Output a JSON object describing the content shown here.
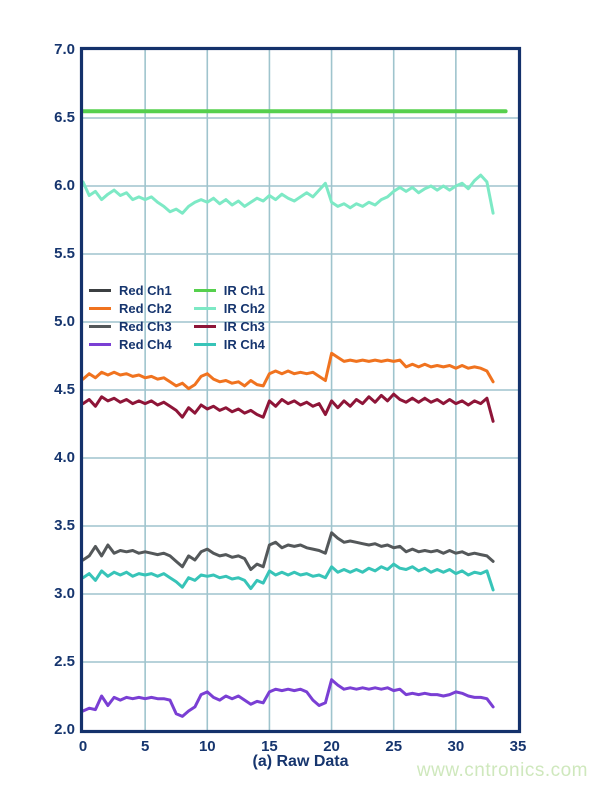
{
  "page": {
    "background": "#ffffff",
    "watermark": "www.cntronics.com",
    "watermark_color": "#cfe8bd"
  },
  "chart_data": {
    "type": "line",
    "title": "",
    "xlabel": "(a) Raw Data",
    "ylabel": "",
    "xlim": [
      0,
      35
    ],
    "ylim": [
      2.0,
      7.0
    ],
    "grid": true,
    "legend_position": "inside-left, two columns, near y=5.0-5.3",
    "axis_color": "#16356e",
    "frame_color": "#14316b",
    "grid_color": "#9fc4cd",
    "x_ticks": [
      {
        "value": 0,
        "label": "0"
      },
      {
        "value": 5,
        "label": "5"
      },
      {
        "value": 10,
        "label": "10"
      },
      {
        "value": 15,
        "label": "15"
      },
      {
        "value": 20,
        "label": "20"
      },
      {
        "value": 25,
        "label": "25"
      },
      {
        "value": 30,
        "label": "30"
      },
      {
        "value": 35,
        "label": "35"
      }
    ],
    "y_ticks": [
      {
        "value": 2.0,
        "label": "2.0"
      },
      {
        "value": 2.5,
        "label": "2.5"
      },
      {
        "value": 3.0,
        "label": "3.0"
      },
      {
        "value": 3.5,
        "label": "3.5"
      },
      {
        "value": 4.0,
        "label": "4.0"
      },
      {
        "value": 4.5,
        "label": "4.5"
      },
      {
        "value": 5.0,
        "label": "5.0"
      },
      {
        "value": 5.5,
        "label": "5.5"
      },
      {
        "value": 6.0,
        "label": "6.0"
      },
      {
        "value": 6.5,
        "label": "6.5"
      },
      {
        "value": 7.0,
        "label": "7.0"
      }
    ],
    "grid_x": [
      5,
      10,
      15,
      20,
      25,
      30
    ],
    "grid_y": [
      2.5,
      3.0,
      3.5,
      4.0,
      4.5,
      5.0,
      5.5,
      6.0,
      6.5
    ],
    "x_start": 0,
    "x_step": 0.5,
    "series": [
      {
        "name": "Red Ch1",
        "color": "#3b3f41",
        "width": 3,
        "values": []
      },
      {
        "name": "Red Ch2",
        "color": "#f0731f",
        "width": 3,
        "values": [
          4.58,
          4.62,
          4.59,
          4.63,
          4.61,
          4.63,
          4.61,
          4.62,
          4.6,
          4.61,
          4.59,
          4.6,
          4.58,
          4.59,
          4.56,
          4.53,
          4.55,
          4.51,
          4.54,
          4.6,
          4.62,
          4.58,
          4.56,
          4.57,
          4.55,
          4.56,
          4.53,
          4.57,
          4.54,
          4.53,
          4.62,
          4.64,
          4.62,
          4.64,
          4.62,
          4.63,
          4.62,
          4.63,
          4.6,
          4.57,
          4.77,
          4.74,
          4.71,
          4.72,
          4.71,
          4.72,
          4.71,
          4.72,
          4.71,
          4.72,
          4.71,
          4.72,
          4.67,
          4.69,
          4.67,
          4.69,
          4.67,
          4.68,
          4.67,
          4.68,
          4.66,
          4.68,
          4.66,
          4.67,
          4.66,
          4.64,
          4.56
        ]
      },
      {
        "name": "Red Ch3",
        "color": "#54585a",
        "width": 3,
        "values": [
          3.25,
          3.28,
          3.35,
          3.28,
          3.36,
          3.3,
          3.32,
          3.31,
          3.32,
          3.3,
          3.31,
          3.3,
          3.29,
          3.3,
          3.28,
          3.24,
          3.2,
          3.28,
          3.25,
          3.31,
          3.33,
          3.3,
          3.28,
          3.29,
          3.27,
          3.28,
          3.26,
          3.18,
          3.22,
          3.2,
          3.36,
          3.38,
          3.34,
          3.36,
          3.35,
          3.36,
          3.34,
          3.33,
          3.32,
          3.3,
          3.45,
          3.41,
          3.38,
          3.39,
          3.38,
          3.37,
          3.36,
          3.37,
          3.35,
          3.36,
          3.34,
          3.35,
          3.31,
          3.33,
          3.31,
          3.32,
          3.31,
          3.32,
          3.3,
          3.32,
          3.3,
          3.31,
          3.29,
          3.3,
          3.29,
          3.28,
          3.24
        ]
      },
      {
        "name": "Red Ch4",
        "color": "#7a3fd4",
        "width": 3,
        "values": [
          2.14,
          2.16,
          2.15,
          2.25,
          2.18,
          2.24,
          2.22,
          2.24,
          2.23,
          2.24,
          2.23,
          2.24,
          2.23,
          2.23,
          2.22,
          2.12,
          2.1,
          2.14,
          2.17,
          2.26,
          2.28,
          2.24,
          2.22,
          2.25,
          2.23,
          2.25,
          2.22,
          2.19,
          2.21,
          2.2,
          2.28,
          2.3,
          2.29,
          2.3,
          2.29,
          2.3,
          2.28,
          2.22,
          2.18,
          2.2,
          2.37,
          2.33,
          2.3,
          2.31,
          2.3,
          2.31,
          2.3,
          2.31,
          2.3,
          2.31,
          2.29,
          2.3,
          2.26,
          2.27,
          2.26,
          2.27,
          2.26,
          2.26,
          2.25,
          2.26,
          2.28,
          2.27,
          2.25,
          2.24,
          2.24,
          2.23,
          2.17
        ]
      },
      {
        "name": "IR Ch1",
        "color": "#56d04e",
        "width": 4,
        "x": [
          0,
          34
        ],
        "values": [
          6.55,
          6.55
        ]
      },
      {
        "name": "IR Ch2",
        "color": "#7de9c5",
        "width": 3,
        "values": [
          6.03,
          5.93,
          5.96,
          5.9,
          5.94,
          5.97,
          5.93,
          5.95,
          5.9,
          5.92,
          5.9,
          5.92,
          5.88,
          5.85,
          5.81,
          5.83,
          5.8,
          5.85,
          5.88,
          5.9,
          5.88,
          5.91,
          5.87,
          5.9,
          5.86,
          5.89,
          5.85,
          5.88,
          5.91,
          5.89,
          5.93,
          5.9,
          5.94,
          5.91,
          5.89,
          5.92,
          5.95,
          5.92,
          5.97,
          6.02,
          5.88,
          5.85,
          5.87,
          5.84,
          5.87,
          5.85,
          5.88,
          5.86,
          5.9,
          5.92,
          5.96,
          5.99,
          5.96,
          5.99,
          5.95,
          5.98,
          6.0,
          5.97,
          6.0,
          5.97,
          6.0,
          6.02,
          5.98,
          6.04,
          6.08,
          6.03,
          5.8
        ]
      },
      {
        "name": "IR Ch3",
        "color": "#8e1538",
        "width": 3,
        "values": [
          4.4,
          4.43,
          4.38,
          4.45,
          4.42,
          4.44,
          4.41,
          4.43,
          4.4,
          4.42,
          4.4,
          4.42,
          4.39,
          4.41,
          4.38,
          4.35,
          4.3,
          4.37,
          4.33,
          4.39,
          4.36,
          4.38,
          4.35,
          4.37,
          4.34,
          4.36,
          4.33,
          4.35,
          4.32,
          4.3,
          4.42,
          4.38,
          4.43,
          4.4,
          4.42,
          4.39,
          4.41,
          4.38,
          4.4,
          4.32,
          4.42,
          4.37,
          4.42,
          4.38,
          4.43,
          4.4,
          4.45,
          4.41,
          4.46,
          4.42,
          4.47,
          4.43,
          4.41,
          4.44,
          4.41,
          4.44,
          4.41,
          4.43,
          4.4,
          4.43,
          4.4,
          4.42,
          4.39,
          4.42,
          4.4,
          4.44,
          4.27
        ]
      },
      {
        "name": "IR Ch4",
        "color": "#37c4b8",
        "width": 3,
        "values": [
          3.12,
          3.15,
          3.1,
          3.17,
          3.13,
          3.16,
          3.14,
          3.16,
          3.13,
          3.15,
          3.14,
          3.15,
          3.13,
          3.15,
          3.12,
          3.09,
          3.05,
          3.12,
          3.1,
          3.14,
          3.13,
          3.14,
          3.12,
          3.13,
          3.11,
          3.12,
          3.1,
          3.04,
          3.1,
          3.08,
          3.17,
          3.14,
          3.16,
          3.14,
          3.16,
          3.14,
          3.15,
          3.13,
          3.14,
          3.12,
          3.2,
          3.16,
          3.18,
          3.16,
          3.18,
          3.16,
          3.19,
          3.17,
          3.2,
          3.18,
          3.22,
          3.19,
          3.18,
          3.2,
          3.17,
          3.19,
          3.16,
          3.18,
          3.16,
          3.18,
          3.15,
          3.17,
          3.14,
          3.16,
          3.15,
          3.17,
          3.03
        ]
      }
    ],
    "legend_order": [
      "Red Ch1",
      "Red Ch2",
      "Red Ch3",
      "Red Ch4",
      "IR Ch1",
      "IR Ch2",
      "IR Ch3",
      "IR Ch4"
    ]
  }
}
